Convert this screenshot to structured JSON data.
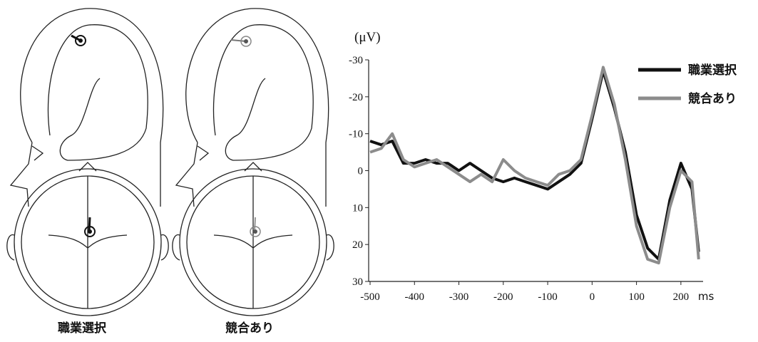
{
  "head_labels": [
    "職業選択",
    "競合あり"
  ],
  "chart_data": {
    "type": "line",
    "y_label": "(μV)",
    "x_label": "ms",
    "x": [
      -500,
      -475,
      -450,
      -425,
      -400,
      -375,
      -350,
      -325,
      -300,
      -275,
      -250,
      -225,
      -200,
      -175,
      -150,
      -125,
      -100,
      -75,
      -50,
      -25,
      0,
      25,
      50,
      75,
      100,
      125,
      150,
      175,
      200,
      225,
      240
    ],
    "series": [
      {
        "name": "職業選択",
        "color": "#111111",
        "values": [
          -8,
          -7,
          -8,
          -2,
          -2,
          -3,
          -2,
          -2,
          0,
          -2,
          0,
          2,
          3,
          2,
          3,
          4,
          5,
          3,
          1,
          -2,
          -14,
          -27,
          -17,
          -5,
          12,
          21,
          24,
          8,
          -2,
          5,
          22
        ]
      },
      {
        "name": "競合あり",
        "color": "#8c8c8c",
        "values": [
          -5,
          -6,
          -10,
          -3,
          -1,
          -2,
          -3,
          -1,
          1,
          3,
          1,
          3,
          -3,
          0,
          2,
          3,
          4,
          1,
          0,
          -3,
          -15,
          -28,
          -18,
          -3,
          15,
          24,
          25,
          10,
          0,
          3,
          24
        ]
      }
    ],
    "xlim": [
      -500,
      250
    ],
    "xticks": [
      -500,
      -400,
      -300,
      -200,
      -100,
      0,
      100,
      200
    ],
    "ylim": [
      -30,
      30
    ],
    "yticks": [
      -30,
      -20,
      -10,
      0,
      10,
      20,
      30
    ],
    "invert_y": true,
    "legend": "top-right"
  }
}
